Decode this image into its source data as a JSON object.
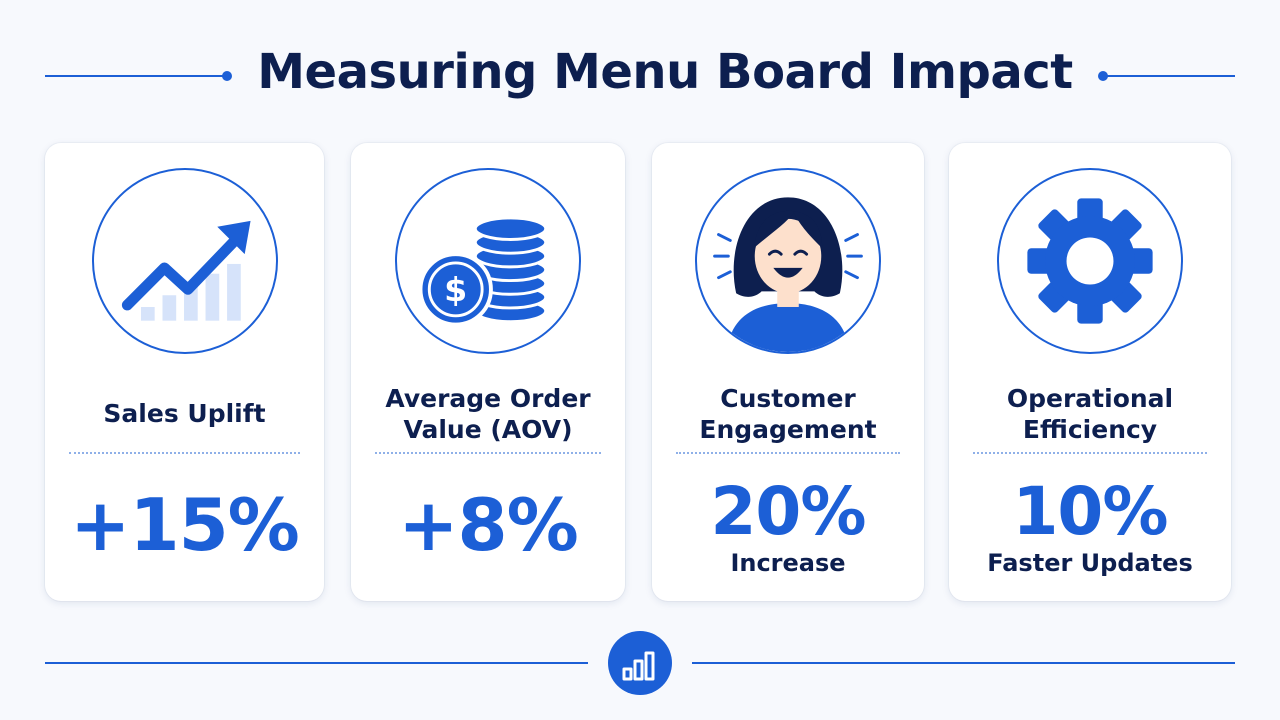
{
  "header": {
    "title": "Measuring Menu Board Impact"
  },
  "metrics": [
    {
      "label": "Sales Uplift",
      "value": "+15%",
      "note": "",
      "icon": "trending-up-chart-icon"
    },
    {
      "label": "Average Order Value (AOV)",
      "value": "+8%",
      "note": "",
      "icon": "coin-stack-dollar-icon"
    },
    {
      "label": "Customer Engagement",
      "value": "20%",
      "note": "Increase",
      "icon": "happy-customer-icon"
    },
    {
      "label": "Operational Efficiency",
      "value": "10%",
      "note": "Faster Updates",
      "icon": "gear-icon"
    }
  ],
  "footer": {
    "icon": "bar-chart-icon"
  },
  "colors": {
    "accent": "#1c5fd6",
    "title": "#0d1f4f",
    "background": "#f7f9fd",
    "card": "#ffffff"
  }
}
